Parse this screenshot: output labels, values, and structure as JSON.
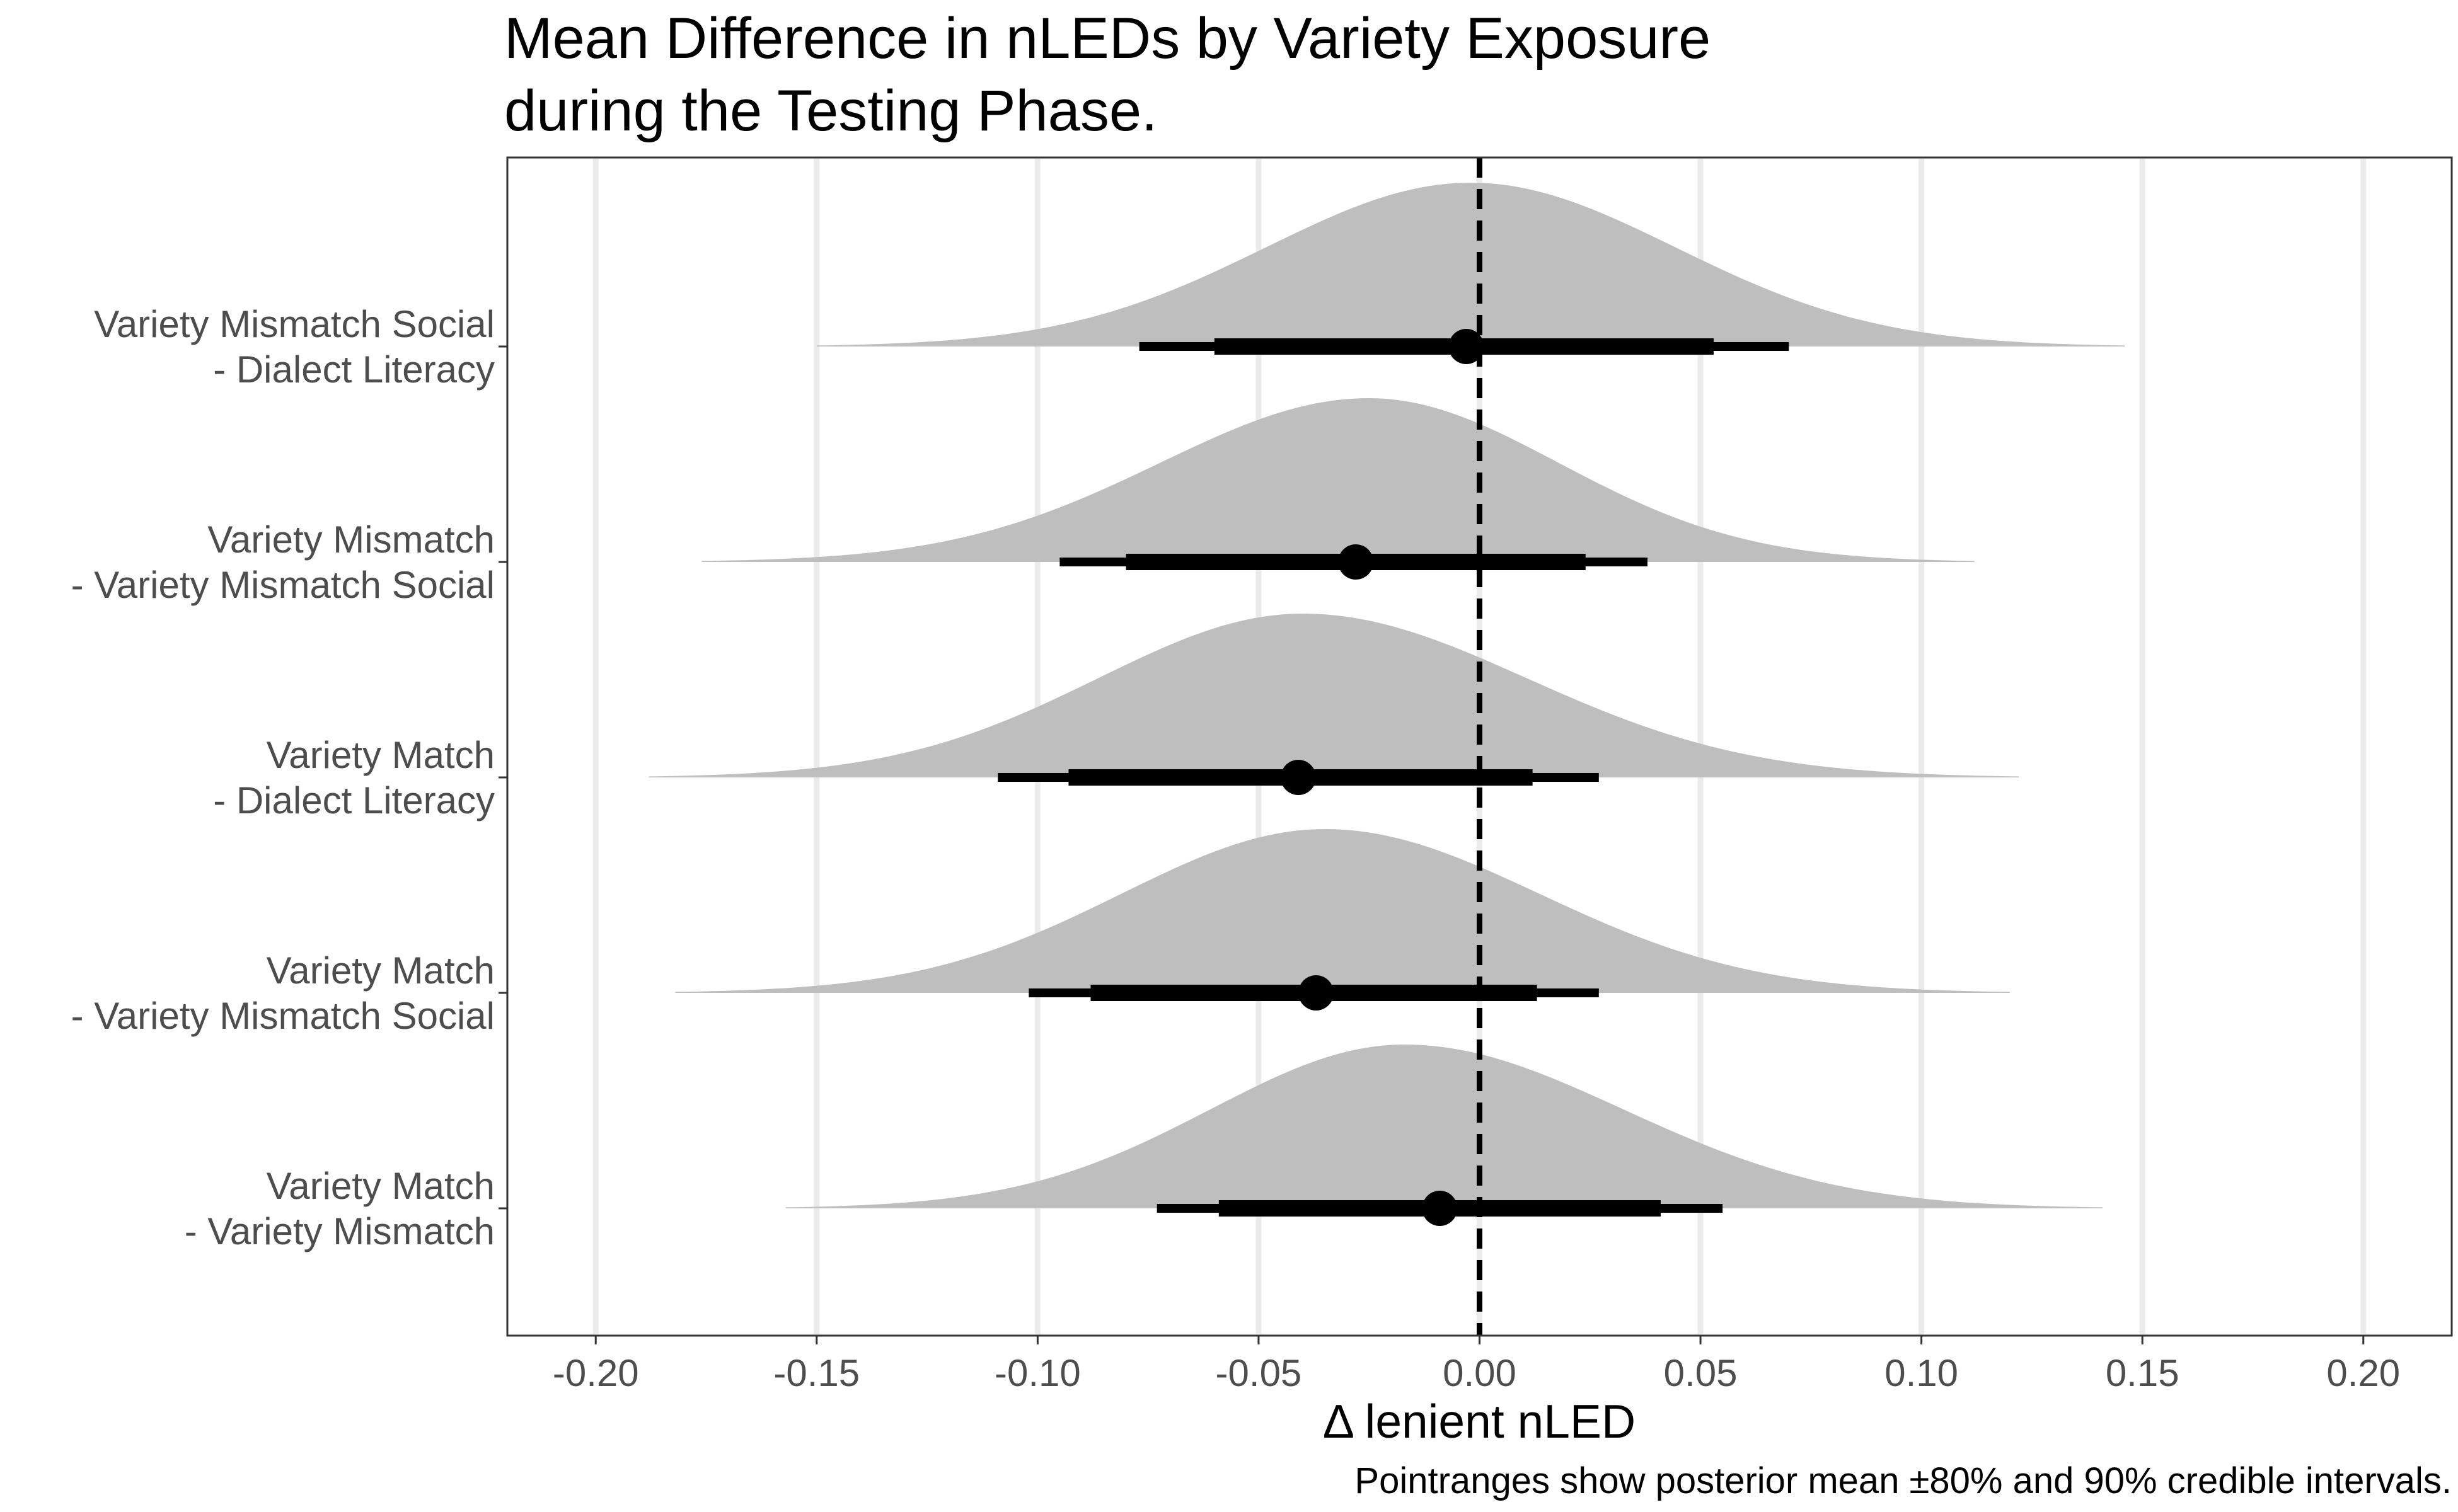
{
  "chart_data": {
    "type": "halfeye",
    "title": "Mean Difference in nLEDs by Variety Exposure\nduring the Testing Phase.",
    "xlabel": "Δ lenient nLED",
    "ylabel": "",
    "caption": "Pointranges show posterior mean ±80% and 90% credible intervals.",
    "xlim": [
      -0.22,
      0.22
    ],
    "xticks": [
      -0.2,
      -0.15,
      -0.1,
      -0.05,
      0.0,
      0.05,
      0.1,
      0.15,
      0.2
    ],
    "xtick_labels": [
      "-0.20",
      "-0.15",
      "-0.10",
      "-0.05",
      "0.00",
      "0.05",
      "0.10",
      "0.15",
      "0.20"
    ],
    "reference_line": 0.0,
    "grid": "vertical major",
    "legend": "none",
    "colors": {
      "density_fill": "#bebebe",
      "interval": "#000000",
      "grid": "#ebebeb",
      "reference_line": "#000000"
    },
    "categories": [
      "Variety Mismatch Social\n- Dialect Literacy",
      "Variety Mismatch\n- Variety Mismatch Social",
      "Variety Match\n- Dialect Literacy",
      "Variety Match\n- Variety Mismatch Social",
      "Variety Match\n- Variety Mismatch"
    ],
    "series": [
      {
        "category": "Variety Mismatch Social\n- Dialect Literacy",
        "mean": -0.003,
        "ci80": [
          -0.06,
          0.053
        ],
        "ci90": [
          -0.077,
          0.07
        ],
        "density_range": [
          -0.15,
          0.146
        ],
        "peak": -0.002
      },
      {
        "category": "Variety Mismatch\n- Variety Mismatch Social",
        "mean": -0.028,
        "ci80": [
          -0.08,
          0.024
        ],
        "ci90": [
          -0.095,
          0.038
        ],
        "density_range": [
          -0.176,
          0.112
        ],
        "peak": -0.025
      },
      {
        "category": "Variety Match\n- Dialect Literacy",
        "mean": -0.041,
        "ci80": [
          -0.093,
          0.012
        ],
        "ci90": [
          -0.109,
          0.027
        ],
        "density_range": [
          -0.188,
          0.122
        ],
        "peak": -0.04
      },
      {
        "category": "Variety Match\n- Variety Mismatch Social",
        "mean": -0.037,
        "ci80": [
          -0.088,
          0.013
        ],
        "ci90": [
          -0.102,
          0.027
        ],
        "density_range": [
          -0.182,
          0.12
        ],
        "peak": -0.035
      },
      {
        "category": "Variety Match\n- Variety Mismatch",
        "mean": -0.009,
        "ci80": [
          -0.059,
          0.041
        ],
        "ci90": [
          -0.073,
          0.055
        ],
        "density_range": [
          -0.157,
          0.141
        ],
        "peak": -0.017
      }
    ]
  }
}
